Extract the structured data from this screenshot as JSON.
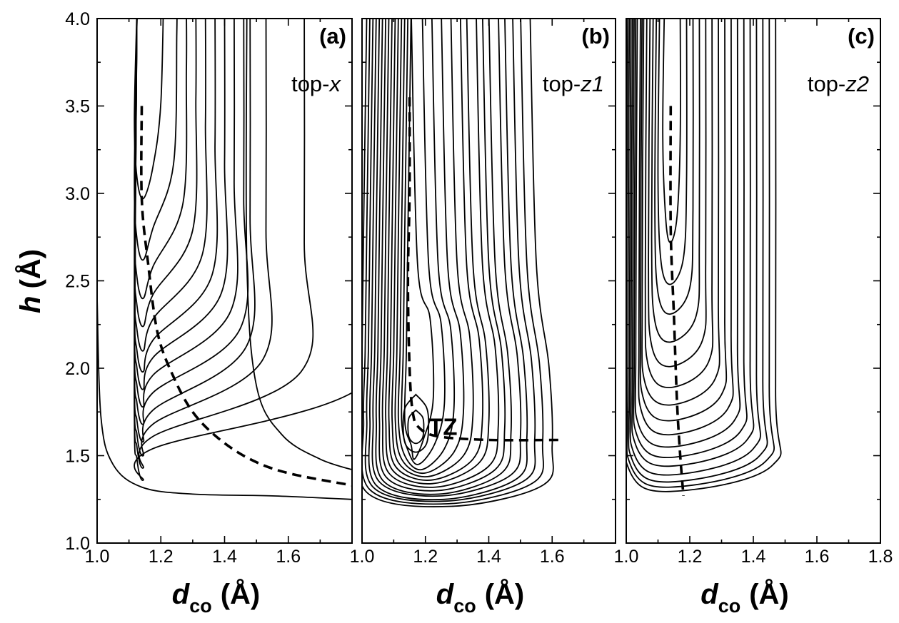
{
  "chart_data": [
    {
      "type": "contour",
      "panel_letter": "(a)",
      "panel_name_prefix": "top-",
      "panel_name_italic": "x",
      "xlabel": {
        "main": "d",
        "sub": "co",
        "unit": "(Å)"
      },
      "ylabel": {
        "main": "h",
        "unit": "(Å)"
      },
      "xlim": [
        1.0,
        1.8
      ],
      "ylim": [
        1.0,
        4.0
      ],
      "xticks": [
        "1.0",
        "1.2",
        "1.4",
        "1.6"
      ],
      "yticks": [
        "1.0",
        "1.5",
        "2.0",
        "2.5",
        "3.0",
        "3.5",
        "4.0"
      ],
      "grid": false,
      "contours": {
        "kind": "open-valley",
        "levels": [
          {
            "bottom": 2.97,
            "right": 1.21
          },
          {
            "bottom": 2.62,
            "right": 1.25
          },
          {
            "bottom": 2.4,
            "right": 1.28
          },
          {
            "bottom": 2.24,
            "right": 1.31
          },
          {
            "bottom": 2.1,
            "right": 1.34
          },
          {
            "bottom": 1.98,
            "right": 1.37
          },
          {
            "bottom": 1.88,
            "right": 1.4
          },
          {
            "bottom": 1.78,
            "right": 1.43
          },
          {
            "bottom": 1.68,
            "right": 1.46
          },
          {
            "bottom": 1.58,
            "right": 1.48
          },
          {
            "bottom": 1.5,
            "right": 1.53
          },
          {
            "bottom": 1.43,
            "right": 1.65
          },
          {
            "bottom": 1.36,
            "right": 1.85
          }
        ]
      },
      "dashed_path": [
        [
          1.14,
          3.5
        ],
        [
          1.14,
          2.97
        ],
        [
          1.16,
          2.6
        ],
        [
          1.19,
          2.2
        ],
        [
          1.24,
          1.95
        ],
        [
          1.3,
          1.75
        ],
        [
          1.38,
          1.6
        ],
        [
          1.48,
          1.48
        ],
        [
          1.6,
          1.4
        ],
        [
          1.8,
          1.33
        ]
      ]
    },
    {
      "type": "contour",
      "panel_letter": "(b)",
      "panel_name_prefix": "top-",
      "panel_name_italic": "z1",
      "annotation": "TZ",
      "xlabel": {
        "main": "d",
        "sub": "co",
        "unit": "(Å)"
      },
      "xlim": [
        1.0,
        1.8
      ],
      "ylim": [
        1.0,
        4.0
      ],
      "xticks": [
        "1.0",
        "1.2",
        "1.4",
        "1.6"
      ],
      "grid": false,
      "contours": {
        "kind": "well",
        "center": [
          1.17,
          1.66
        ],
        "closed_levels": [
          {
            "rx": 0.025,
            "top": 0.1,
            "bottom": 0.09
          },
          {
            "rx": 0.04,
            "top": 0.19,
            "bottom": 0.14
          }
        ],
        "open_levels": [
          {
            "left": 1.145,
            "right": 1.225,
            "bottom": 1.48
          },
          {
            "left": 1.135,
            "right": 1.26,
            "bottom": 1.45
          },
          {
            "left": 1.125,
            "right": 1.29,
            "bottom": 1.42
          },
          {
            "left": 1.115,
            "right": 1.32,
            "bottom": 1.4
          },
          {
            "left": 1.105,
            "right": 1.35,
            "bottom": 1.38
          },
          {
            "left": 1.095,
            "right": 1.38,
            "bottom": 1.36
          },
          {
            "left": 1.085,
            "right": 1.4,
            "bottom": 1.34
          },
          {
            "left": 1.075,
            "right": 1.43,
            "bottom": 1.32
          },
          {
            "left": 1.065,
            "right": 1.45,
            "bottom": 1.3
          },
          {
            "left": 1.055,
            "right": 1.47,
            "bottom": 1.28
          },
          {
            "left": 1.045,
            "right": 1.5,
            "bottom": 1.27
          },
          {
            "left": 1.035,
            "right": 1.52,
            "bottom": 1.25
          },
          {
            "left": 1.025,
            "right": 1.545,
            "bottom": 1.24
          },
          {
            "left": 1.015,
            "right": 1.57,
            "bottom": 1.225
          },
          {
            "left": 1.005,
            "right": 1.6,
            "bottom": 1.21
          }
        ]
      },
      "dashed_path": [
        [
          1.15,
          3.55
        ],
        [
          1.15,
          3.0
        ],
        [
          1.145,
          2.5
        ],
        [
          1.15,
          2.0
        ],
        [
          1.16,
          1.75
        ],
        [
          1.18,
          1.66
        ],
        [
          1.24,
          1.61
        ],
        [
          1.4,
          1.59
        ],
        [
          1.62,
          1.59
        ]
      ]
    },
    {
      "type": "contour",
      "panel_letter": "(c)",
      "panel_name_prefix": "top-",
      "panel_name_italic": "z2",
      "xlabel": {
        "main": "d",
        "sub": "co",
        "unit": "(Å)"
      },
      "xlim": [
        1.0,
        1.8
      ],
      "ylim": [
        1.0,
        4.0
      ],
      "xticks": [
        "1.0",
        "1.2",
        "1.4",
        "1.6",
        "1.8"
      ],
      "grid": false,
      "contours": {
        "kind": "u-valley",
        "center_x": 1.14,
        "levels": [
          {
            "bottom": 2.72,
            "left": 1.115,
            "right": 1.17
          },
          {
            "bottom": 2.48,
            "left": 1.1,
            "right": 1.19
          },
          {
            "bottom": 2.31,
            "left": 1.09,
            "right": 1.21
          },
          {
            "bottom": 2.15,
            "left": 1.08,
            "right": 1.23
          },
          {
            "bottom": 2.01,
            "left": 1.07,
            "right": 1.25
          },
          {
            "bottom": 1.89,
            "left": 1.06,
            "right": 1.27
          },
          {
            "bottom": 1.79,
            "left": 1.05,
            "right": 1.29
          },
          {
            "bottom": 1.7,
            "left": 1.045,
            "right": 1.31
          },
          {
            "bottom": 1.62,
            "left": 1.04,
            "right": 1.33
          },
          {
            "bottom": 1.55,
            "left": 1.03,
            "right": 1.35
          },
          {
            "bottom": 1.49,
            "left": 1.025,
            "right": 1.37
          },
          {
            "bottom": 1.44,
            "left": 1.02,
            "right": 1.39
          },
          {
            "bottom": 1.39,
            "left": 1.015,
            "right": 1.41
          },
          {
            "bottom": 1.35,
            "left": 1.01,
            "right": 1.43
          },
          {
            "bottom": 1.32,
            "left": 1.005,
            "right": 1.45
          },
          {
            "bottom": 1.295,
            "left": 1.0,
            "right": 1.47
          }
        ]
      },
      "dashed_path": [
        [
          1.14,
          3.5
        ],
        [
          1.14,
          2.8
        ],
        [
          1.15,
          2.3
        ],
        [
          1.16,
          1.8
        ],
        [
          1.17,
          1.5
        ],
        [
          1.18,
          1.27
        ]
      ]
    }
  ]
}
